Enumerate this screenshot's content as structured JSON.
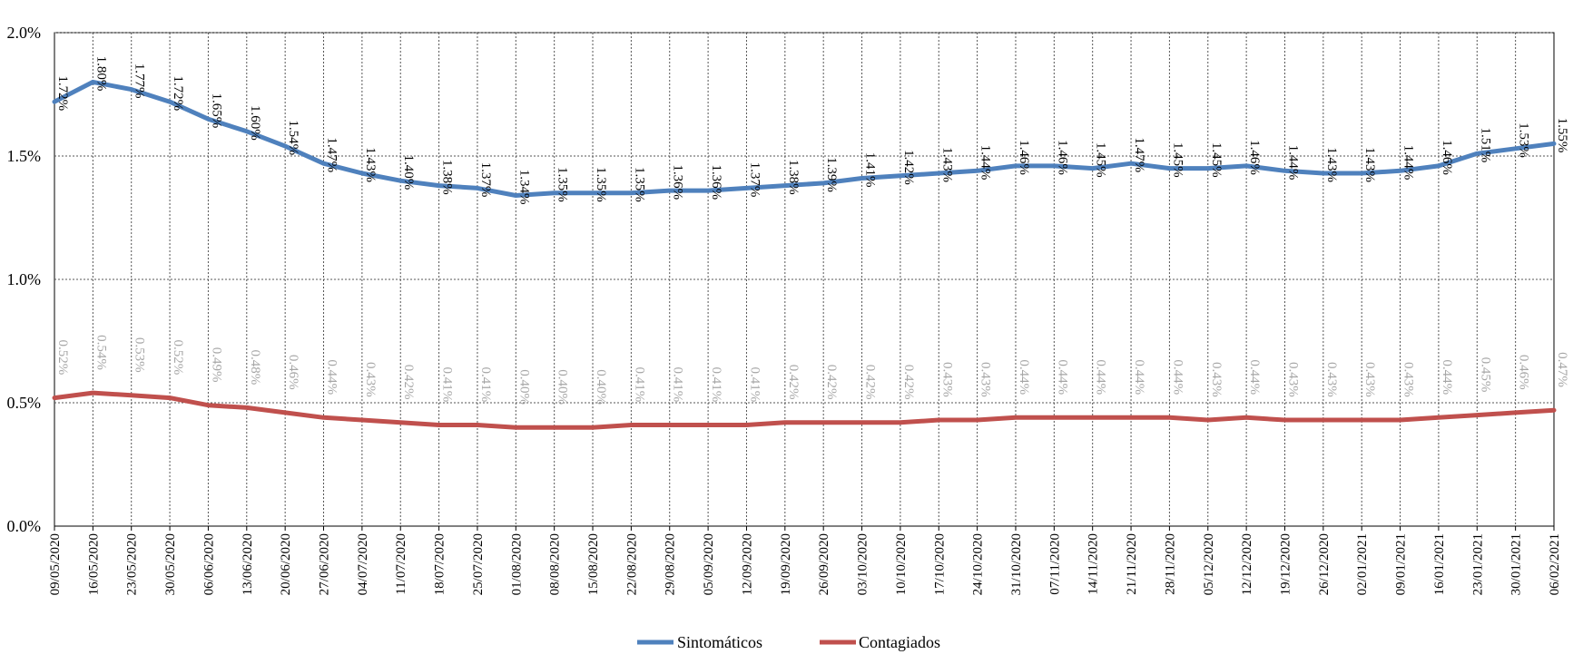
{
  "chart_data": {
    "type": "line",
    "y_ticks": [
      "0.0%",
      "0.5%",
      "1.0%",
      "1.5%",
      "2.0%"
    ],
    "ylim": [
      0,
      2.0
    ],
    "grid": true,
    "legend_position": "bottom",
    "categories": [
      "09/05/2020",
      "16/05/2020",
      "23/05/2020",
      "30/05/2020",
      "06/06/2020",
      "13/06/2020",
      "20/06/2020",
      "27/06/2020",
      "04/07/2020",
      "11/07/2020",
      "18/07/2020",
      "25/07/2020",
      "01/08/2020",
      "08/08/2020",
      "15/08/2020",
      "22/08/2020",
      "29/08/2020",
      "05/09/2020",
      "12/09/2020",
      "19/09/2020",
      "26/09/2020",
      "03/10/2020",
      "10/10/2020",
      "17/10/2020",
      "24/10/2020",
      "31/10/2020",
      "07/11/2020",
      "14/11/2020",
      "21/11/2020",
      "28/11/2020",
      "05/12/2020",
      "12/12/2020",
      "19/12/2020",
      "26/12/2020",
      "02/01/2021",
      "09/01/2021",
      "16/01/2021",
      "23/01/2021",
      "30/01/2021",
      "06/02/2021"
    ],
    "series": [
      {
        "name": "Sintomáticos",
        "color": "#4f81bd",
        "values": [
          1.72,
          1.8,
          1.77,
          1.72,
          1.65,
          1.6,
          1.54,
          1.47,
          1.43,
          1.4,
          1.38,
          1.37,
          1.34,
          1.35,
          1.35,
          1.35,
          1.36,
          1.36,
          1.37,
          1.38,
          1.39,
          1.41,
          1.42,
          1.43,
          1.44,
          1.46,
          1.46,
          1.45,
          1.47,
          1.45,
          1.45,
          1.46,
          1.44,
          1.43,
          1.43,
          1.44,
          1.46,
          1.51,
          1.53,
          1.55
        ],
        "labels": [
          "1.72%",
          "1.80%",
          "1.77%",
          "1.72%",
          "1.65%",
          "1.60%",
          "1.54%",
          "1.47%",
          "1.43%",
          "1.40%",
          "1.38%",
          "1.37%",
          "1.34%",
          "1.35%",
          "1.35%",
          "1.35%",
          "1.36%",
          "1.36%",
          "1.37%",
          "1.38%",
          "1.39%",
          "1.41%",
          "1.42%",
          "1.43%",
          "1.44%",
          "1.46%",
          "1.46%",
          "1.45%",
          "1.47%",
          "1.45%",
          "1.45%",
          "1.46%",
          "1.44%",
          "1.43%",
          "1.43%",
          "1.44%",
          "1.46%",
          "1.51%",
          "1.53%",
          "1.55%"
        ]
      },
      {
        "name": "Contagiados",
        "color": "#c0504d",
        "values": [
          0.52,
          0.54,
          0.53,
          0.52,
          0.49,
          0.48,
          0.46,
          0.44,
          0.43,
          0.42,
          0.41,
          0.41,
          0.4,
          0.4,
          0.4,
          0.41,
          0.41,
          0.41,
          0.41,
          0.42,
          0.42,
          0.42,
          0.42,
          0.43,
          0.43,
          0.44,
          0.44,
          0.44,
          0.44,
          0.44,
          0.43,
          0.44,
          0.43,
          0.43,
          0.43,
          0.43,
          0.44,
          0.45,
          0.46,
          0.47
        ],
        "labels": [
          "0.52%",
          "0.54%",
          "0.53%",
          "0.52%",
          "0.49%",
          "0.48%",
          "0.46%",
          "0.44%",
          "0.43%",
          "0.42%",
          "0.41%",
          "0.41%",
          "0.40%",
          "0.40%",
          "0.40%",
          "0.41%",
          "0.41%",
          "0.41%",
          "0.41%",
          "0.42%",
          "0.42%",
          "0.42%",
          "0.42%",
          "0.43%",
          "0.43%",
          "0.44%",
          "0.44%",
          "0.44%",
          "0.44%",
          "0.44%",
          "0.43%",
          "0.44%",
          "0.43%",
          "0.43%",
          "0.43%",
          "0.43%",
          "0.44%",
          "0.45%",
          "0.46%",
          "0.47%"
        ]
      }
    ]
  }
}
